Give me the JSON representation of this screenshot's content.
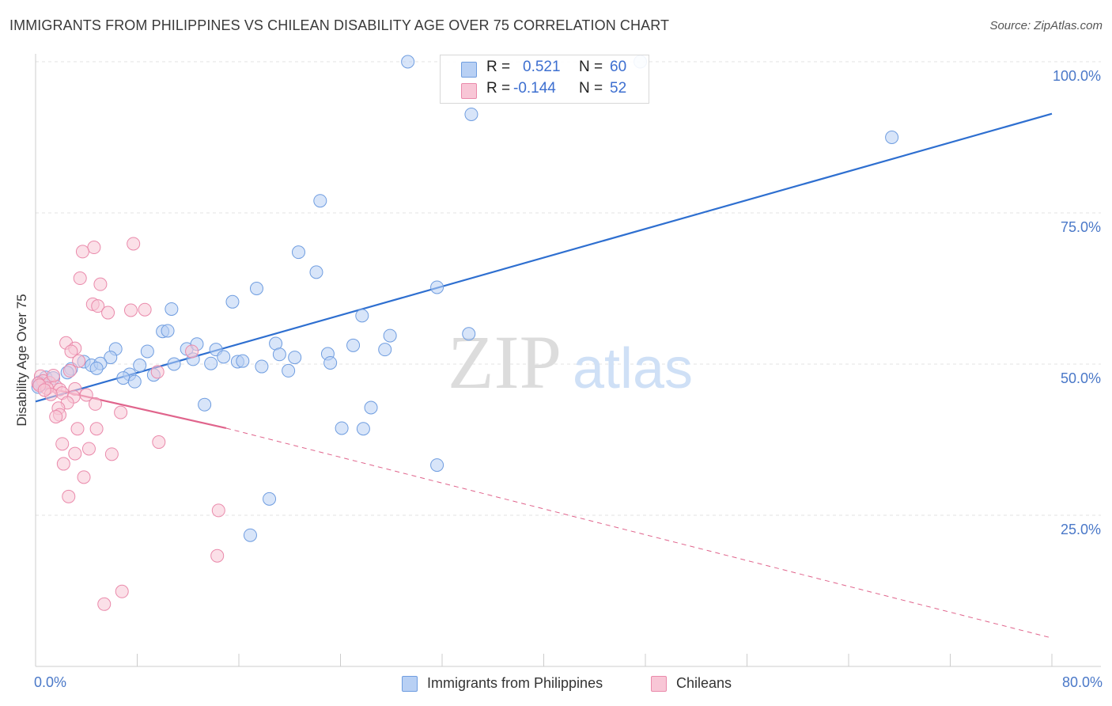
{
  "title": "IMMIGRANTS FROM PHILIPPINES VS CHILEAN DISABILITY AGE OVER 75 CORRELATION CHART",
  "source": "Source: ZipAtlas.com",
  "watermark": {
    "zip": "ZIP",
    "atlas": "atlas"
  },
  "chart_data": {
    "type": "scatter",
    "ylabel": "Disability Age Over 75",
    "xlim": [
      0,
      80
    ],
    "ylim": [
      0,
      100
    ],
    "x_tick_labels": [
      "0.0%",
      "80.0%"
    ],
    "y_tick_values": [
      25,
      50,
      75,
      100
    ],
    "y_tick_labels": [
      "25.0%",
      "50.0%",
      "75.0%",
      "100.0%"
    ],
    "grid": true,
    "legend_position": "bottom-center",
    "stats": [
      {
        "r_label": "R =",
        "r_value": "0.521",
        "n_label": "N =",
        "n_value": "60"
      },
      {
        "r_label": "R =",
        "r_value": "-0.144",
        "n_label": "N =",
        "n_value": "52"
      }
    ],
    "series": [
      {
        "name": "Immigrants from Philippines",
        "color": "#6f9de0",
        "fill": "#b8d0f4",
        "trend_color": "#2e6fd0",
        "trend": {
          "x0": 0,
          "y0": 43.8,
          "x1": 80,
          "y1": 91.4
        },
        "points": [
          [
            29.3,
            100
          ],
          [
            47.6,
            100
          ],
          [
            34.3,
            91.3
          ],
          [
            67.4,
            87.5
          ],
          [
            22.4,
            77.0
          ],
          [
            20.7,
            68.5
          ],
          [
            22.1,
            65.2
          ],
          [
            17.4,
            62.5
          ],
          [
            31.6,
            62.7
          ],
          [
            15.5,
            60.3
          ],
          [
            10.7,
            59.1
          ],
          [
            25.7,
            58.0
          ],
          [
            10.0,
            55.4
          ],
          [
            10.4,
            55.5
          ],
          [
            34.1,
            55.0
          ],
          [
            27.9,
            54.7
          ],
          [
            6.3,
            52.5
          ],
          [
            8.8,
            52.1
          ],
          [
            11.9,
            52.5
          ],
          [
            12.7,
            53.3
          ],
          [
            25.0,
            53.1
          ],
          [
            18.9,
            53.4
          ],
          [
            14.2,
            52.4
          ],
          [
            27.5,
            52.4
          ],
          [
            5.9,
            51.1
          ],
          [
            14.8,
            51.2
          ],
          [
            19.2,
            51.6
          ],
          [
            20.4,
            51.1
          ],
          [
            23.0,
            51.7
          ],
          [
            15.9,
            50.4
          ],
          [
            16.3,
            50.5
          ],
          [
            12.4,
            50.8
          ],
          [
            13.8,
            50.1
          ],
          [
            10.9,
            50.0
          ],
          [
            23.2,
            50.2
          ],
          [
            3.8,
            50.4
          ],
          [
            4.4,
            49.8
          ],
          [
            5.1,
            50.1
          ],
          [
            4.8,
            49.3
          ],
          [
            8.2,
            49.8
          ],
          [
            17.8,
            49.6
          ],
          [
            19.9,
            48.9
          ],
          [
            2.8,
            49.2
          ],
          [
            2.5,
            48.6
          ],
          [
            7.4,
            48.3
          ],
          [
            9.3,
            48.2
          ],
          [
            0.8,
            47.8
          ],
          [
            1.4,
            47.7
          ],
          [
            6.9,
            47.7
          ],
          [
            7.8,
            47.1
          ],
          [
            0.3,
            47.0
          ],
          [
            0.5,
            46.7
          ],
          [
            13.3,
            43.3
          ],
          [
            26.4,
            42.8
          ],
          [
            24.1,
            39.4
          ],
          [
            25.8,
            39.3
          ],
          [
            31.6,
            33.3
          ],
          [
            18.4,
            27.7
          ],
          [
            16.9,
            21.7
          ],
          [
            0.2,
            46.2
          ]
        ]
      },
      {
        "name": "Chileans",
        "color": "#ea8aab",
        "fill": "#f8c6d6",
        "trend_color": "#e0648c",
        "trend": {
          "x0": 0,
          "y0": 46.5,
          "x1": 15.0,
          "y1": 39.4
        },
        "trend_extension": {
          "x0": 15.0,
          "y0": 39.4,
          "x1": 80,
          "y1": 4.7
        },
        "points": [
          [
            7.7,
            69.9
          ],
          [
            4.6,
            69.3
          ],
          [
            3.7,
            68.6
          ],
          [
            3.5,
            64.2
          ],
          [
            5.1,
            63.2
          ],
          [
            4.5,
            59.9
          ],
          [
            4.9,
            59.6
          ],
          [
            8.6,
            59.0
          ],
          [
            7.5,
            58.9
          ],
          [
            5.7,
            58.5
          ],
          [
            2.4,
            53.5
          ],
          [
            3.1,
            52.6
          ],
          [
            2.8,
            52.1
          ],
          [
            12.3,
            52.1
          ],
          [
            3.4,
            50.5
          ],
          [
            0.4,
            48.0
          ],
          [
            2.7,
            48.9
          ],
          [
            9.6,
            48.7
          ],
          [
            0.6,
            47.2
          ],
          [
            1.1,
            46.9
          ],
          [
            1.6,
            46.3
          ],
          [
            0.2,
            46.8
          ],
          [
            0.9,
            46.0
          ],
          [
            3.1,
            45.9
          ],
          [
            1.9,
            45.8
          ],
          [
            2.1,
            45.2
          ],
          [
            1.2,
            45.0
          ],
          [
            4.0,
            44.9
          ],
          [
            3.0,
            44.6
          ],
          [
            2.5,
            43.6
          ],
          [
            4.7,
            43.4
          ],
          [
            1.8,
            42.7
          ],
          [
            6.7,
            42.0
          ],
          [
            1.9,
            41.6
          ],
          [
            1.6,
            41.3
          ],
          [
            3.3,
            39.3
          ],
          [
            4.8,
            39.3
          ],
          [
            9.7,
            37.1
          ],
          [
            2.1,
            36.8
          ],
          [
            4.2,
            36.0
          ],
          [
            3.1,
            35.2
          ],
          [
            6.0,
            35.1
          ],
          [
            2.2,
            33.5
          ],
          [
            3.8,
            31.3
          ],
          [
            2.6,
            28.1
          ],
          [
            14.4,
            25.8
          ],
          [
            14.3,
            18.3
          ],
          [
            6.8,
            12.4
          ],
          [
            5.4,
            10.3
          ],
          [
            0.3,
            46.5
          ],
          [
            0.7,
            45.7
          ],
          [
            1.4,
            48.1
          ]
        ]
      }
    ]
  }
}
